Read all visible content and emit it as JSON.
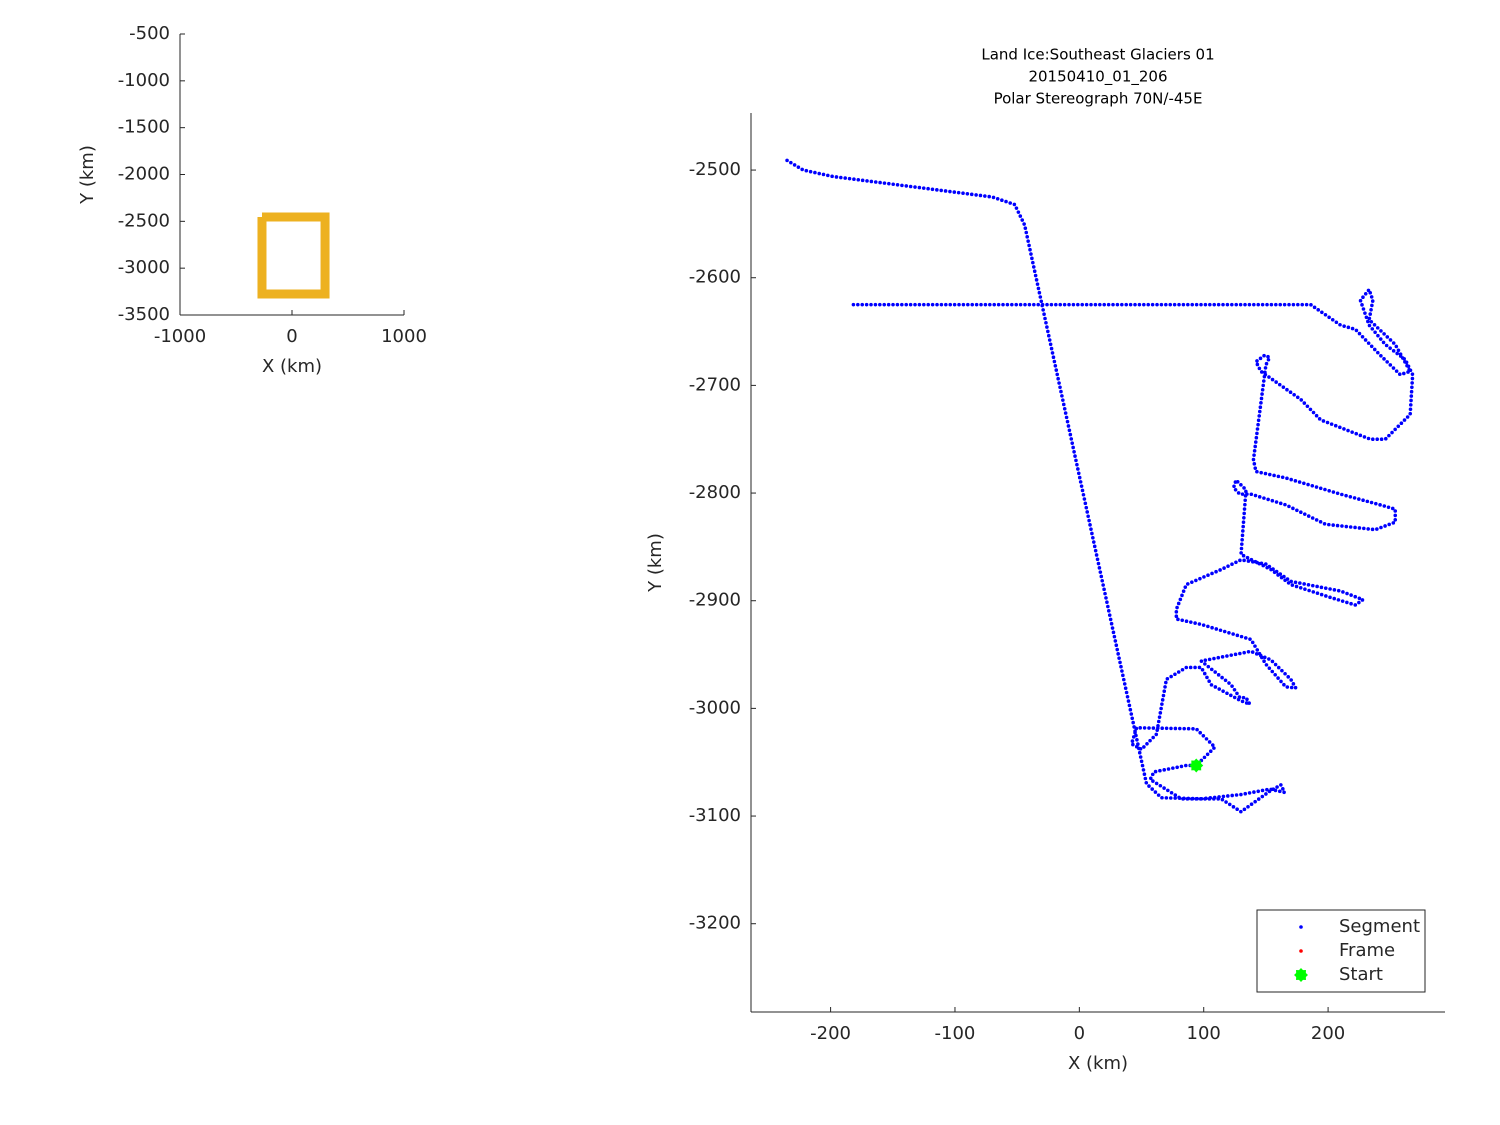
{
  "chart_data": [
    {
      "type": "line",
      "xlabel": "X (km)",
      "ylabel": "Y (km)",
      "xlim": [
        -1000,
        1000
      ],
      "ylim": [
        -3500,
        -500
      ],
      "xticks": [
        -1000,
        0,
        1000
      ],
      "yticks": [
        -3500,
        -3000,
        -2500,
        -2000,
        -1500,
        -1000,
        -500
      ],
      "series": [
        {
          "color": "#edb120",
          "x": [
            -268,
            295,
            295,
            -268,
            -268
          ],
          "y": [
            -2454,
            -2454,
            -3276,
            -3276,
            -2454
          ]
        }
      ]
    },
    {
      "type": "scatter",
      "title": [
        "Land Ice:Southeast Glaciers 01",
        "20150410_01_206",
        "Polar Stereograph 70N/-45E"
      ],
      "xlabel": "X (km)",
      "ylabel": "Y (km)",
      "xlim": [
        -264,
        294
      ],
      "ylim": [
        -3282,
        -2447
      ],
      "xticks": [
        -200,
        -100,
        0,
        100,
        200
      ],
      "yticks": [
        -3200,
        -3100,
        -3000,
        -2900,
        -2800,
        -2700,
        -2600,
        -2500
      ],
      "legend": "lower right",
      "series": [
        {
          "name": "Segment",
          "color": "#0000ff",
          "marker": "dot",
          "x": [
            -235,
            -222,
            -198,
            -70,
            -52,
            -44,
            54,
            66,
            98,
            130,
            153,
            165,
            162,
            153,
            130,
            114,
            82,
            57,
            60,
            86,
            94,
            109,
            94,
            46,
            42,
            50,
            62,
            70,
            86,
            98,
            106,
            130,
            137,
            134,
            129,
            122,
            98,
            138,
            154,
            170,
            174,
            166,
            150,
            138,
            98,
            78,
            78,
            86,
            114,
            130,
            150,
            170,
            210,
            228,
            222,
            202,
            170,
            154,
            130,
            134,
            126,
            124,
            129,
            138,
            166,
            198,
            238,
            254,
            254,
            242,
            210,
            166,
            142,
            140,
            150,
            153,
            149,
            142,
            146,
            178,
            194,
            234,
            246,
            266,
            268,
            262,
            246,
            233,
            226,
            233,
            236,
            233,
            254,
            266,
            258,
            242,
            222,
            210,
            186,
            -182
          ],
          "y": [
            -2491,
            -2500,
            -2506,
            -2525,
            -2532,
            -2551,
            -3070,
            -3083,
            -3084,
            -3080,
            -3075,
            -3078,
            -3071,
            -3077,
            -3096,
            -3084,
            -3084,
            -3066,
            -3059,
            -3053,
            -3053,
            -3036,
            -3019,
            -3018,
            -3033,
            -3038,
            -3024,
            -2973,
            -2962,
            -2962,
            -2978,
            -2993,
            -2996,
            -2990,
            -2990,
            -2978,
            -2956,
            -2947,
            -2955,
            -2973,
            -2981,
            -2980,
            -2959,
            -2936,
            -2922,
            -2917,
            -2908,
            -2885,
            -2871,
            -2862,
            -2866,
            -2882,
            -2891,
            -2899,
            -2904,
            -2897,
            -2885,
            -2871,
            -2857,
            -2797,
            -2788,
            -2795,
            -2801,
            -2801,
            -2811,
            -2829,
            -2834,
            -2827,
            -2815,
            -2811,
            -2801,
            -2786,
            -2780,
            -2769,
            -2681,
            -2674,
            -2672,
            -2678,
            -2687,
            -2713,
            -2732,
            -2750,
            -2750,
            -2727,
            -2690,
            -2676,
            -2662,
            -2644,
            -2621,
            -2611,
            -2621,
            -2639,
            -2662,
            -2687,
            -2690,
            -2672,
            -2648,
            -2644,
            -2625,
            -2625
          ]
        },
        {
          "name": "Frame",
          "color": "#ff0000",
          "marker": "dot",
          "x": [],
          "y": []
        },
        {
          "name": "Start",
          "color": "#00ff00",
          "marker": "star",
          "x": [
            94
          ],
          "y": [
            -3053
          ]
        }
      ]
    }
  ]
}
